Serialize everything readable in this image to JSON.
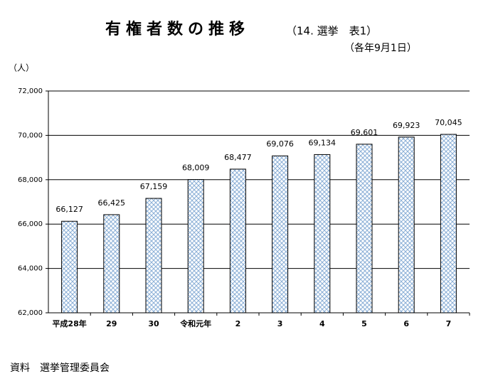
{
  "chart_data": {
    "type": "bar",
    "title": "有権者数の推移",
    "subtitle": "（14. 選挙　表1）",
    "date_note": "（各年9月1日）",
    "y_unit": "（人）",
    "source": "資料　選挙管理委員会",
    "categories": [
      "平成28年",
      "29",
      "30",
      "令和元年",
      "2",
      "3",
      "4",
      "5",
      "6",
      "7"
    ],
    "values": [
      66127,
      66425,
      67159,
      68009,
      68477,
      69076,
      69134,
      69601,
      69923,
      70045
    ],
    "value_labels": [
      "66,127",
      "66,425",
      "67,159",
      "68,009",
      "68,477",
      "69,076",
      "69,134",
      "69,601",
      "69,923",
      "70,045"
    ],
    "color": "#8aaed6",
    "ylim": [
      62000,
      72000
    ],
    "yticks": [
      {
        "value": 62000,
        "label": "62,000"
      },
      {
        "value": 64000,
        "label": "64,000"
      },
      {
        "value": 66000,
        "label": "66,000"
      },
      {
        "value": 68000,
        "label": "68,000"
      },
      {
        "value": 70000,
        "label": "70,000"
      },
      {
        "value": 72000,
        "label": "72,000"
      }
    ],
    "grid": true
  }
}
